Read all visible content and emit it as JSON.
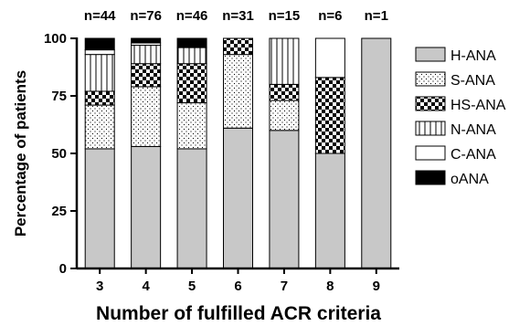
{
  "chart_data": {
    "type": "bar",
    "stacked": true,
    "xlabel": "Number of fulfilled ACR criteria",
    "ylabel": "Percentage of patients",
    "ylim": [
      0,
      100
    ],
    "yticks": [
      0,
      25,
      50,
      75,
      100
    ],
    "categories": [
      "3",
      "4",
      "5",
      "6",
      "7",
      "8",
      "9"
    ],
    "n_labels": [
      "n=44",
      "n=76",
      "n=46",
      "n=31",
      "n=15",
      "n=6",
      "n=1"
    ],
    "legend_position": "right",
    "series": [
      {
        "name": "H-ANA",
        "pattern": "gray",
        "values": [
          52,
          53,
          52,
          61,
          60,
          50,
          100
        ]
      },
      {
        "name": "S-ANA",
        "pattern": "dots",
        "values": [
          19,
          26,
          20,
          32,
          13,
          0,
          0
        ]
      },
      {
        "name": "HS-ANA",
        "pattern": "checker",
        "values": [
          6,
          10,
          17,
          7,
          7,
          33,
          0
        ]
      },
      {
        "name": "N-ANA",
        "pattern": "vlines",
        "values": [
          16,
          8,
          7,
          0,
          20,
          0,
          0
        ]
      },
      {
        "name": "C-ANA",
        "pattern": "white",
        "values": [
          2,
          1,
          0,
          0,
          0,
          17,
          0
        ]
      },
      {
        "name": "oANA",
        "pattern": "black",
        "values": [
          5,
          2,
          4,
          0,
          0,
          0,
          0
        ]
      }
    ]
  }
}
